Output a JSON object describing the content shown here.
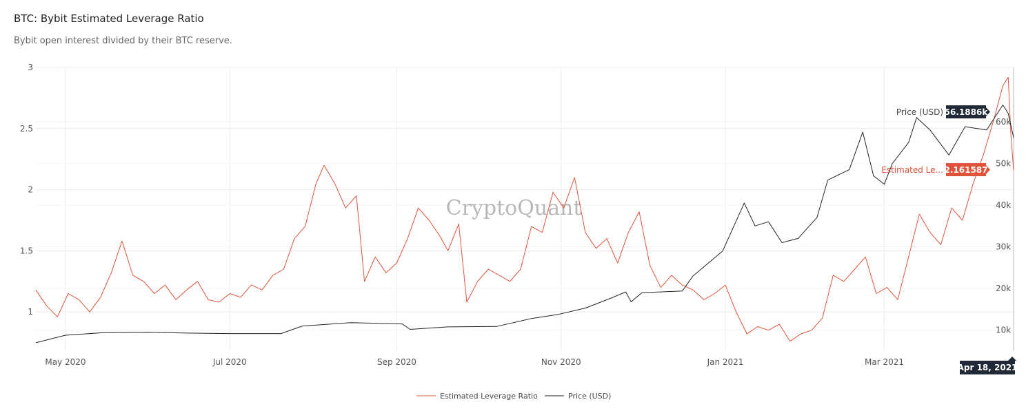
{
  "title": "BTC: Bybit Estimated Leverage Ratio",
  "subtitle": "Bybit open interest divided by their BTC reserve.",
  "watermark": "CryptoQuant",
  "hover": {
    "price_label": "Price (USD)",
    "price_value": "56.1886k",
    "ratio_label": "Estimated Le...",
    "ratio_value": "2.161587",
    "date": "Apr 18, 2021"
  },
  "colors": {
    "ratio": "#e0533a",
    "price": "#222222",
    "grid": "#ececec"
  },
  "chart_data": {
    "type": "line",
    "x_ticks": [
      "May 2020",
      "Jul 2020",
      "Sep 2020",
      "Nov 2020",
      "Jan 2021",
      "Mar 2021"
    ],
    "y_left_ticks": [
      "1",
      "1.5",
      "2",
      "2.5",
      "3"
    ],
    "y_right_ticks": [
      "10k",
      "20k",
      "30k",
      "40k",
      "50k",
      "60k"
    ],
    "x_range": [
      "2020-04-20",
      "2021-04-18"
    ],
    "y_left_range": [
      0.68,
      3.0
    ],
    "y_right_range": [
      5000,
      73000
    ],
    "grid": true,
    "legend_position": "bottom-center",
    "series": [
      {
        "name": "Estimated Leverage Ratio",
        "axis": "left",
        "points": [
          [
            "2020-04-20",
            1.18
          ],
          [
            "2020-04-24",
            1.05
          ],
          [
            "2020-04-28",
            0.96
          ],
          [
            "2020-05-02",
            1.15
          ],
          [
            "2020-05-06",
            1.1
          ],
          [
            "2020-05-10",
            1.0
          ],
          [
            "2020-05-14",
            1.12
          ],
          [
            "2020-05-18",
            1.32
          ],
          [
            "2020-05-22",
            1.58
          ],
          [
            "2020-05-26",
            1.3
          ],
          [
            "2020-05-30",
            1.25
          ],
          [
            "2020-06-03",
            1.15
          ],
          [
            "2020-06-07",
            1.22
          ],
          [
            "2020-06-11",
            1.1
          ],
          [
            "2020-06-15",
            1.18
          ],
          [
            "2020-06-19",
            1.25
          ],
          [
            "2020-06-23",
            1.1
          ],
          [
            "2020-06-27",
            1.08
          ],
          [
            "2020-07-01",
            1.15
          ],
          [
            "2020-07-05",
            1.12
          ],
          [
            "2020-07-09",
            1.22
          ],
          [
            "2020-07-13",
            1.18
          ],
          [
            "2020-07-17",
            1.3
          ],
          [
            "2020-07-21",
            1.35
          ],
          [
            "2020-07-25",
            1.6
          ],
          [
            "2020-07-29",
            1.7
          ],
          [
            "2020-08-02",
            2.05
          ],
          [
            "2020-08-05",
            2.2
          ],
          [
            "2020-08-09",
            2.05
          ],
          [
            "2020-08-13",
            1.85
          ],
          [
            "2020-08-17",
            1.95
          ],
          [
            "2020-08-20",
            1.25
          ],
          [
            "2020-08-24",
            1.45
          ],
          [
            "2020-08-28",
            1.32
          ],
          [
            "2020-09-01",
            1.4
          ],
          [
            "2020-09-05",
            1.6
          ],
          [
            "2020-09-09",
            1.85
          ],
          [
            "2020-09-13",
            1.75
          ],
          [
            "2020-09-17",
            1.62
          ],
          [
            "2020-09-20",
            1.5
          ],
          [
            "2020-09-24",
            1.72
          ],
          [
            "2020-09-27",
            1.08
          ],
          [
            "2020-10-01",
            1.25
          ],
          [
            "2020-10-05",
            1.35
          ],
          [
            "2020-10-09",
            1.3
          ],
          [
            "2020-10-13",
            1.25
          ],
          [
            "2020-10-17",
            1.35
          ],
          [
            "2020-10-21",
            1.7
          ],
          [
            "2020-10-25",
            1.65
          ],
          [
            "2020-10-29",
            1.98
          ],
          [
            "2020-11-02",
            1.85
          ],
          [
            "2020-11-06",
            2.1
          ],
          [
            "2020-11-10",
            1.65
          ],
          [
            "2020-11-14",
            1.52
          ],
          [
            "2020-11-18",
            1.6
          ],
          [
            "2020-11-22",
            1.4
          ],
          [
            "2020-11-26",
            1.65
          ],
          [
            "2020-11-30",
            1.82
          ],
          [
            "2020-12-04",
            1.38
          ],
          [
            "2020-12-08",
            1.2
          ],
          [
            "2020-12-12",
            1.3
          ],
          [
            "2020-12-16",
            1.22
          ],
          [
            "2020-12-20",
            1.18
          ],
          [
            "2020-12-24",
            1.1
          ],
          [
            "2020-12-28",
            1.15
          ],
          [
            "2021-01-01",
            1.22
          ],
          [
            "2021-01-05",
            1.0
          ],
          [
            "2021-01-09",
            0.82
          ],
          [
            "2021-01-13",
            0.88
          ],
          [
            "2021-01-17",
            0.85
          ],
          [
            "2021-01-21",
            0.9
          ],
          [
            "2021-01-25",
            0.76
          ],
          [
            "2021-01-29",
            0.82
          ],
          [
            "2021-02-02",
            0.85
          ],
          [
            "2021-02-06",
            0.95
          ],
          [
            "2021-02-10",
            1.3
          ],
          [
            "2021-02-14",
            1.25
          ],
          [
            "2021-02-18",
            1.35
          ],
          [
            "2021-02-22",
            1.45
          ],
          [
            "2021-02-26",
            1.15
          ],
          [
            "2021-03-02",
            1.2
          ],
          [
            "2021-03-06",
            1.1
          ],
          [
            "2021-03-10",
            1.45
          ],
          [
            "2021-03-14",
            1.8
          ],
          [
            "2021-03-18",
            1.65
          ],
          [
            "2021-03-22",
            1.55
          ],
          [
            "2021-03-26",
            1.85
          ],
          [
            "2021-03-30",
            1.75
          ],
          [
            "2021-04-03",
            2.05
          ],
          [
            "2021-04-07",
            2.3
          ],
          [
            "2021-04-11",
            2.6
          ],
          [
            "2021-04-14",
            2.85
          ],
          [
            "2021-04-16",
            2.92
          ],
          [
            "2021-04-17",
            2.45
          ],
          [
            "2021-04-18",
            2.16
          ]
        ]
      },
      {
        "name": "Price (USD)",
        "axis": "right",
        "points": [
          [
            "2020-04-20",
            7000
          ],
          [
            "2020-05-01",
            8800
          ],
          [
            "2020-05-15",
            9400
          ],
          [
            "2020-06-01",
            9500
          ],
          [
            "2020-06-15",
            9300
          ],
          [
            "2020-07-01",
            9200
          ],
          [
            "2020-07-20",
            9200
          ],
          [
            "2020-07-28",
            11000
          ],
          [
            "2020-08-15",
            11800
          ],
          [
            "2020-09-03",
            11500
          ],
          [
            "2020-09-06",
            10200
          ],
          [
            "2020-09-20",
            10800
          ],
          [
            "2020-10-08",
            10900
          ],
          [
            "2020-10-21",
            12800
          ],
          [
            "2020-10-31",
            13800
          ],
          [
            "2020-11-10",
            15300
          ],
          [
            "2020-11-20",
            17800
          ],
          [
            "2020-11-25",
            19200
          ],
          [
            "2020-11-27",
            16800
          ],
          [
            "2020-12-01",
            19000
          ],
          [
            "2020-12-16",
            19400
          ],
          [
            "2020-12-20",
            23000
          ],
          [
            "2020-12-31",
            29000
          ],
          [
            "2021-01-08",
            40500
          ],
          [
            "2021-01-12",
            35000
          ],
          [
            "2021-01-17",
            36000
          ],
          [
            "2021-01-22",
            31000
          ],
          [
            "2021-01-28",
            32000
          ],
          [
            "2021-02-04",
            37000
          ],
          [
            "2021-02-08",
            46000
          ],
          [
            "2021-02-16",
            48500
          ],
          [
            "2021-02-21",
            57500
          ],
          [
            "2021-02-25",
            47000
          ],
          [
            "2021-03-01",
            45000
          ],
          [
            "2021-03-04",
            50000
          ],
          [
            "2021-03-10",
            55000
          ],
          [
            "2021-03-13",
            61000
          ],
          [
            "2021-03-18",
            58000
          ],
          [
            "2021-03-25",
            52000
          ],
          [
            "2021-03-31",
            58800
          ],
          [
            "2021-04-08",
            58000
          ],
          [
            "2021-04-14",
            64000
          ],
          [
            "2021-04-16",
            62000
          ],
          [
            "2021-04-18",
            56188
          ]
        ]
      }
    ]
  }
}
